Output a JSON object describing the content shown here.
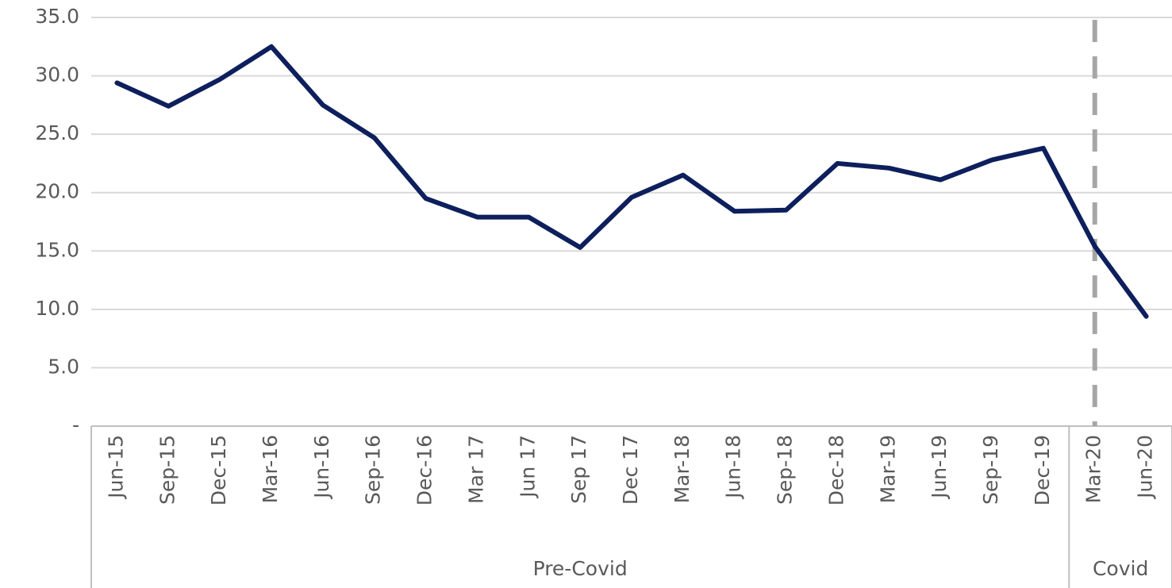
{
  "chart_data": {
    "type": "line",
    "categories": [
      "Jun-15",
      "Sep-15",
      "Dec-15",
      "Mar-16",
      "Jun-16",
      "Sep-16",
      "Dec-16",
      "Mar 17",
      "Jun 17",
      "Sep 17",
      "Dec 17",
      "Mar-18",
      "Jun-18",
      "Sep-18",
      "Dec-18",
      "Mar-19",
      "Jun-19",
      "Sep-19",
      "Dec-19",
      "Mar-20",
      "Jun-20"
    ],
    "series": [
      {
        "color": "#0d1f5c",
        "values": [
          29.4,
          27.4,
          29.7,
          32.5,
          27.5,
          24.7,
          19.5,
          17.9,
          17.9,
          15.3,
          19.6,
          21.5,
          18.4,
          18.5,
          22.5,
          22.1,
          21.1,
          22.8,
          23.8,
          15.4,
          9.4
        ]
      }
    ],
    "groups": [
      {
        "label": "Pre-Covid",
        "count": 19
      },
      {
        "label": "Covid",
        "count": 2
      }
    ],
    "ylim": [
      0,
      35
    ],
    "yticks": [
      {
        "value": 0,
        "label": "-"
      },
      {
        "value": 5,
        "label": "5.0"
      },
      {
        "value": 10,
        "label": "10.0"
      },
      {
        "value": 15,
        "label": "15.0"
      },
      {
        "value": 20,
        "label": "20.0"
      },
      {
        "value": 25,
        "label": "25.0"
      },
      {
        "value": 30,
        "label": "30.0"
      },
      {
        "value": 35,
        "label": "35.0"
      }
    ],
    "grid": true
  }
}
